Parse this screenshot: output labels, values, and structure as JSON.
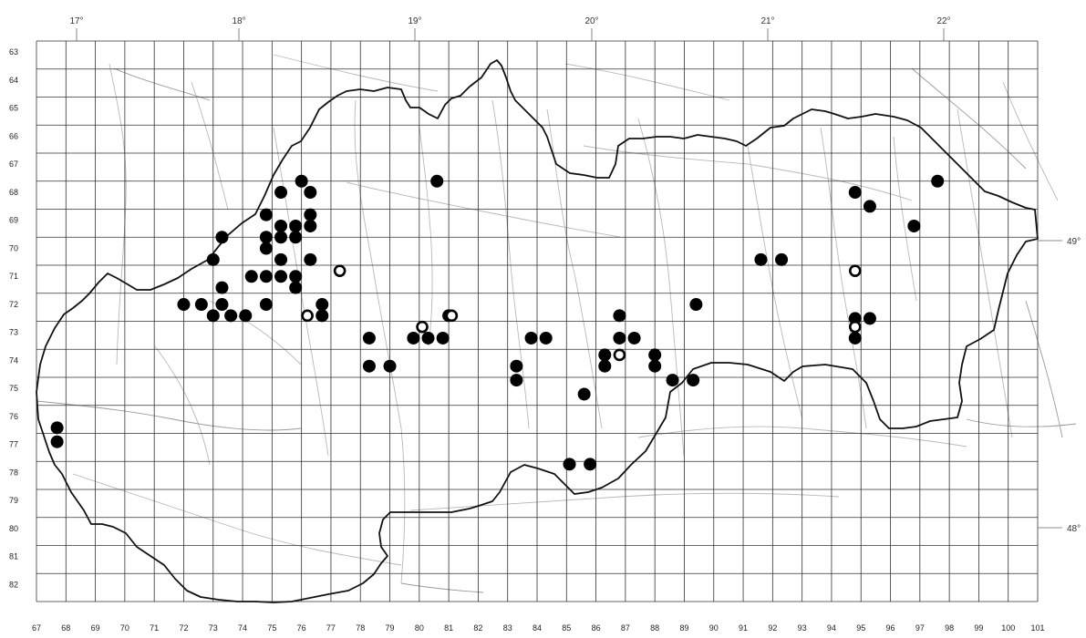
{
  "longitudes": [
    "17°",
    "18°",
    "19°",
    "20°",
    "21°",
    "22°"
  ],
  "latitudes": [
    "49°",
    "48°"
  ],
  "rows": [
    63,
    64,
    65,
    66,
    67,
    68,
    69,
    70,
    71,
    72,
    73,
    74,
    75,
    76,
    77,
    78,
    79,
    80,
    81,
    82
  ],
  "cols": [
    67,
    68,
    69,
    70,
    71,
    72,
    73,
    74,
    75,
    76,
    77,
    78,
    79,
    80,
    81,
    82,
    83,
    84,
    85,
    86,
    87,
    88,
    89,
    90,
    91,
    92,
    93,
    94,
    95,
    96,
    97,
    98,
    99,
    100,
    101
  ],
  "records": {
    "confirmed": [
      [
        76,
        68
      ],
      [
        75.3,
        68.4
      ],
      [
        76.3,
        68.4
      ],
      [
        80.6,
        68
      ],
      [
        94.8,
        68.4
      ],
      [
        97.6,
        68
      ],
      [
        74.8,
        69.2
      ],
      [
        76.3,
        69.2
      ],
      [
        95.3,
        68.9
      ],
      [
        74.8,
        70
      ],
      [
        75.3,
        69.6
      ],
      [
        75.8,
        69.6
      ],
      [
        76.3,
        69.6
      ],
      [
        75.3,
        70
      ],
      [
        75.8,
        70
      ],
      [
        96.8,
        69.6
      ],
      [
        73.3,
        70
      ],
      [
        73,
        70.8
      ],
      [
        74.8,
        70.4
      ],
      [
        75.3,
        70.8
      ],
      [
        76.3,
        70.8
      ],
      [
        74.3,
        71.4
      ],
      [
        74.8,
        71.4
      ],
      [
        75.3,
        71.4
      ],
      [
        75.8,
        71.4
      ],
      [
        75.8,
        71.8
      ],
      [
        73.3,
        71.8
      ],
      [
        91.6,
        70.8
      ],
      [
        92.3,
        70.8
      ],
      [
        72,
        72.4
      ],
      [
        72.6,
        72.4
      ],
      [
        73.3,
        72.4
      ],
      [
        74.8,
        72.4
      ],
      [
        76.7,
        72.4
      ],
      [
        89.4,
        72.4
      ],
      [
        73,
        72.8
      ],
      [
        73.6,
        72.8
      ],
      [
        74.1,
        72.8
      ],
      [
        76.7,
        72.8
      ],
      [
        81,
        72.8
      ],
      [
        86.8,
        72.8
      ],
      [
        94.8,
        72.9
      ],
      [
        95.3,
        72.9
      ],
      [
        78.3,
        73.6
      ],
      [
        79.8,
        73.6
      ],
      [
        80.3,
        73.6
      ],
      [
        80.8,
        73.6
      ],
      [
        83.8,
        73.6
      ],
      [
        84.3,
        73.6
      ],
      [
        86.8,
        73.6
      ],
      [
        87.3,
        73.6
      ],
      [
        94.8,
        73.6
      ],
      [
        86.3,
        74.2
      ],
      [
        88,
        74.2
      ],
      [
        78.3,
        74.6
      ],
      [
        79,
        74.6
      ],
      [
        83.3,
        74.6
      ],
      [
        86.3,
        74.6
      ],
      [
        88,
        74.6
      ],
      [
        83.3,
        75.1
      ],
      [
        88.6,
        75.1
      ],
      [
        89.3,
        75.1
      ],
      [
        85.6,
        75.6
      ],
      [
        67.7,
        76.8
      ],
      [
        67.7,
        77.3
      ],
      [
        85.1,
        78.1
      ],
      [
        85.8,
        78.1
      ]
    ],
    "unconfirmed": [
      [
        77.3,
        71.2
      ],
      [
        76.2,
        72.8
      ],
      [
        80.1,
        73.2
      ],
      [
        81.1,
        72.8
      ],
      [
        86.8,
        74.2
      ],
      [
        94.8,
        71.2
      ],
      [
        94.8,
        73.2
      ]
    ]
  }
}
